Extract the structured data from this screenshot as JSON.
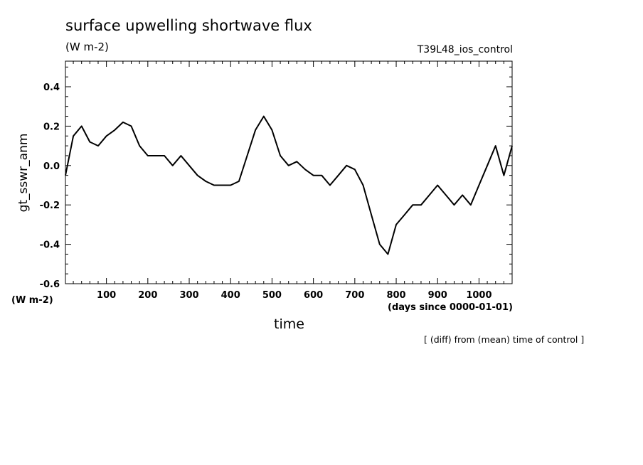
{
  "chart_data": {
    "type": "line",
    "title": "surface upwelling shortwave flux",
    "units_label": "(W m-2)",
    "run_label": "T39L48_ios_control",
    "ylabel": "gt_sswr_anm",
    "y_units": "(W m-2)",
    "xlabel": "time",
    "x_units": "(days since 0000-01-01)",
    "note": "[ (diff) from (mean) time of control ]",
    "xlim": [
      1,
      1080
    ],
    "ylim": [
      -0.6,
      0.53
    ],
    "x_ticks": [
      100,
      200,
      300,
      400,
      500,
      600,
      700,
      800,
      900,
      1000
    ],
    "y_ticks": [
      -0.6,
      -0.4,
      -0.2,
      0.0,
      0.2,
      0.4
    ],
    "y_tick_labels": [
      "-0.6",
      "-0.4",
      "-0.2",
      "0.0",
      "0.2",
      "0.4"
    ],
    "series": [
      {
        "x": [
          1,
          20,
          40,
          60,
          80,
          100,
          120,
          140,
          160,
          180,
          200,
          220,
          240,
          260,
          280,
          300,
          320,
          340,
          360,
          380,
          400,
          420,
          440,
          460,
          480,
          500,
          520,
          540,
          560,
          580,
          600,
          620,
          640,
          660,
          680,
          700,
          720,
          740,
          760,
          780,
          800,
          820,
          840,
          860,
          880,
          900,
          920,
          940,
          960,
          980,
          1000,
          1020,
          1040,
          1060,
          1080
        ],
        "values": [
          -0.05,
          0.15,
          0.2,
          0.12,
          0.1,
          0.15,
          0.18,
          0.22,
          0.2,
          0.1,
          0.05,
          0.05,
          0.05,
          0.0,
          0.05,
          0.0,
          -0.05,
          -0.08,
          -0.1,
          -0.1,
          -0.1,
          -0.08,
          0.05,
          0.18,
          0.25,
          0.18,
          0.05,
          0.0,
          0.02,
          -0.02,
          -0.05,
          -0.05,
          -0.1,
          -0.05,
          0.0,
          -0.02,
          -0.1,
          -0.25,
          -0.4,
          -0.45,
          -0.3,
          -0.25,
          -0.2,
          -0.2,
          -0.15,
          -0.1,
          -0.15,
          -0.2,
          -0.15,
          -0.2,
          -0.1,
          0.0,
          0.1,
          -0.05,
          0.1
        ]
      }
    ]
  }
}
